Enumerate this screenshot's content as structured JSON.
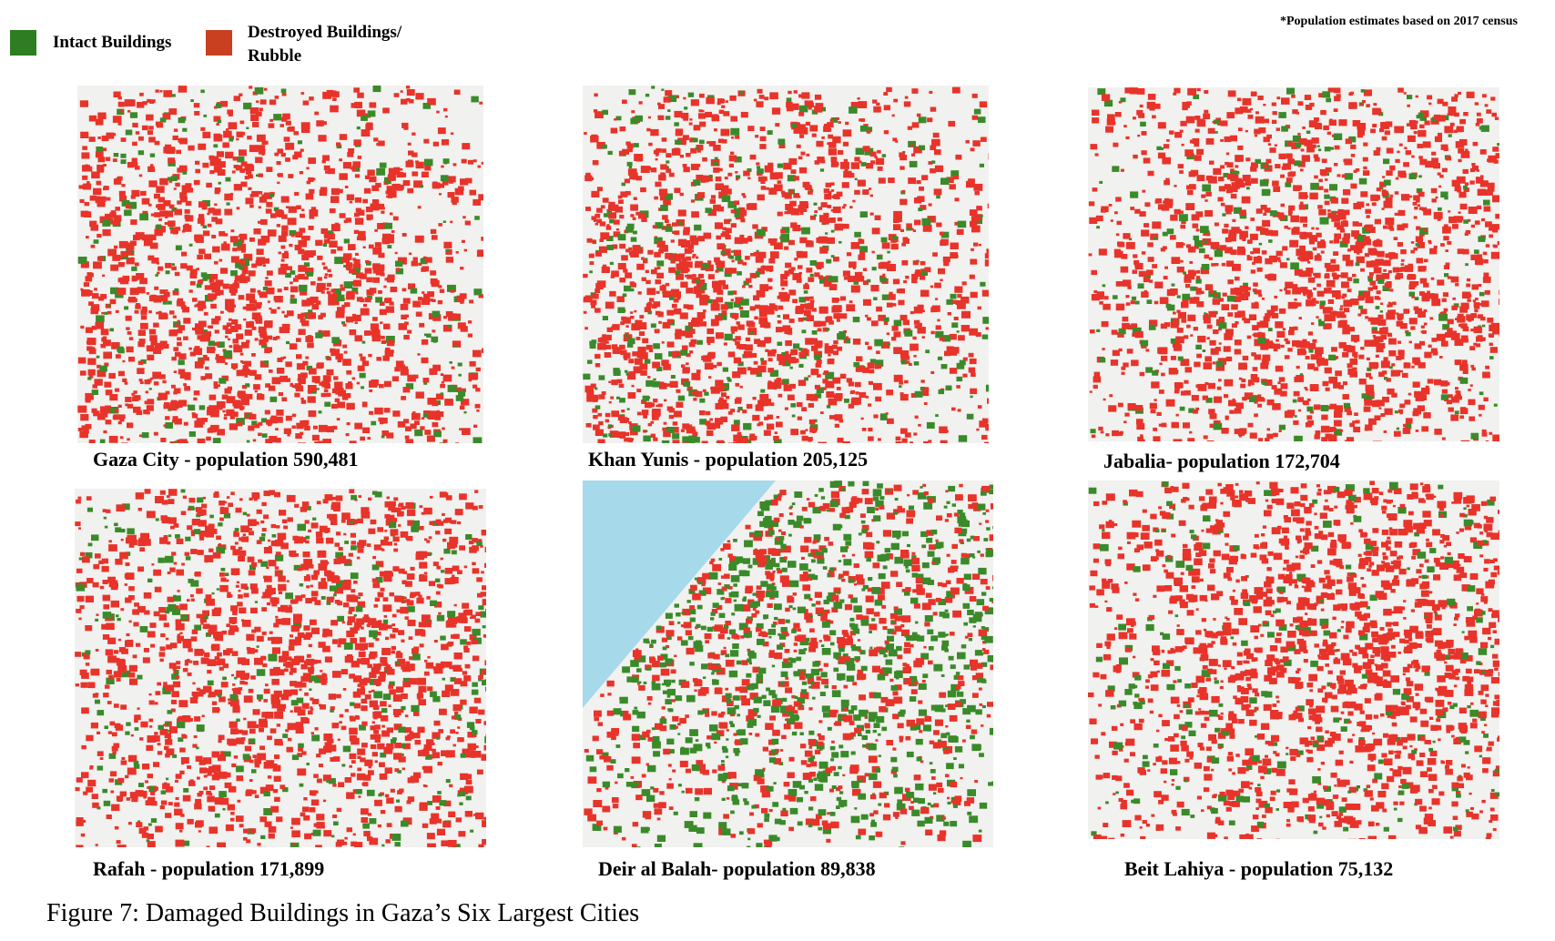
{
  "legend": [
    {
      "label": "Intact Buildings",
      "color": "#2e7d22"
    },
    {
      "label": "Destroyed Buildings/\nRubble",
      "color": "#c8401f"
    }
  ],
  "note": "*Population estimates based on 2017 census",
  "panels": [
    {
      "caption": "Gaza City - population 590,481"
    },
    {
      "caption": "Khan Yunis - population 205,125"
    },
    {
      "caption": "Jabalia- population 172,704"
    },
    {
      "caption": "Rafah - population 171,899"
    },
    {
      "caption": "Deir al Balah- population 89,838"
    },
    {
      "caption": "Beit Lahiya - population 75,132"
    }
  ],
  "figure_caption": "Figure 7: Damaged Buildings in Gaza’s Six Largest Cities"
}
